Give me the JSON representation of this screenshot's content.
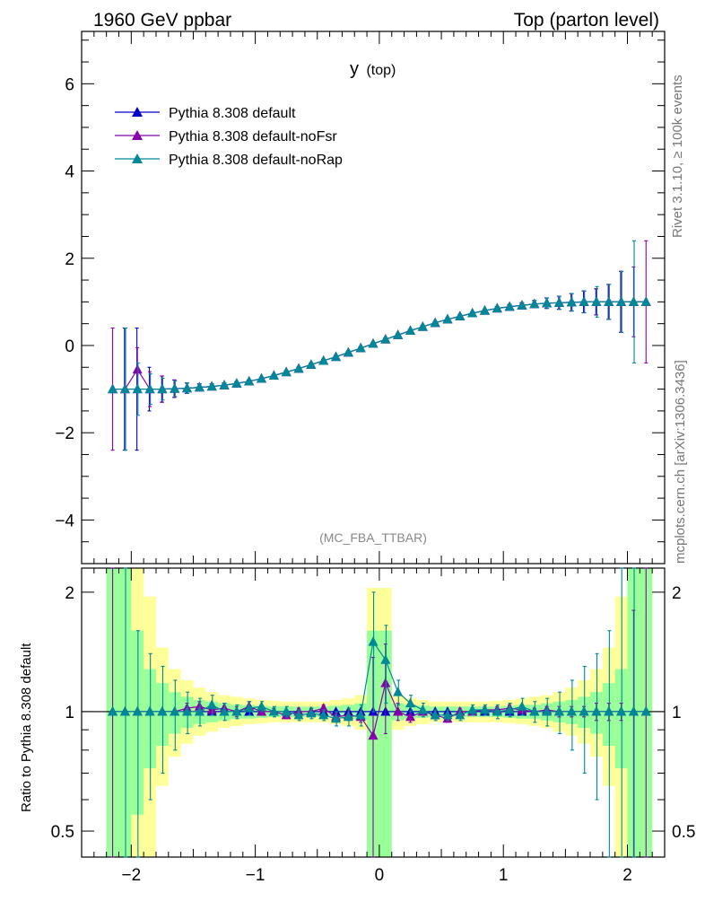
{
  "header": {
    "left": "1960 GeV ppbar",
    "right": "Top (parton level)"
  },
  "side_labels": {
    "rivet": "Rivet 3.1.10, ≥ 100k events",
    "mcplots": "mcplots.cern.ch [arXiv:1306.3436]"
  },
  "chart_data": [
    {
      "type": "line",
      "title": "y",
      "title_sub": "(top)",
      "annotation": "(MC_FBA_TTBAR)",
      "xlim": [
        -2.4,
        2.3
      ],
      "ylim": [
        -5.0,
        7.2
      ],
      "x_ticks": [
        -2,
        -1,
        0,
        1,
        2
      ],
      "x_tick_labels": [
        "−2",
        "−1",
        "0",
        "1",
        "2"
      ],
      "y_ticks": [
        -4,
        -2,
        0,
        2,
        4,
        6
      ],
      "y_tick_labels": [
        "−4",
        "−2",
        "0",
        "2",
        "4",
        "6"
      ],
      "legend_position": "top-left",
      "x": [
        -2.15,
        -2.05,
        -1.95,
        -1.85,
        -1.75,
        -1.65,
        -1.55,
        -1.45,
        -1.35,
        -1.25,
        -1.15,
        -1.05,
        -0.95,
        -0.85,
        -0.75,
        -0.65,
        -0.55,
        -0.45,
        -0.35,
        -0.25,
        -0.15,
        -0.05,
        0.05,
        0.15,
        0.25,
        0.35,
        0.45,
        0.55,
        0.65,
        0.75,
        0.85,
        0.95,
        1.05,
        1.15,
        1.25,
        1.35,
        1.45,
        1.55,
        1.65,
        1.75,
        1.85,
        1.95,
        2.05,
        2.15
      ],
      "series": [
        {
          "name": "Pythia 8.308 default",
          "color": "#0000cc",
          "values": [
            -1.0,
            -1.0,
            -1.0,
            -1.0,
            -1.0,
            -0.99,
            -0.98,
            -0.96,
            -0.94,
            -0.91,
            -0.87,
            -0.82,
            -0.76,
            -0.69,
            -0.61,
            -0.53,
            -0.44,
            -0.35,
            -0.26,
            -0.16,
            -0.06,
            0.04,
            0.14,
            0.24,
            0.34,
            0.43,
            0.52,
            0.6,
            0.67,
            0.74,
            0.8,
            0.85,
            0.89,
            0.92,
            0.95,
            0.97,
            0.98,
            0.99,
            1.0,
            1.0,
            1.0,
            1.0,
            1.0,
            1.0
          ],
          "errors": [
            0.0,
            1.4,
            1.4,
            0.5,
            0.3,
            0.2,
            0.12,
            0.08,
            0.06,
            0.05,
            0.04,
            0.03,
            0.03,
            0.03,
            0.03,
            0.03,
            0.03,
            0.03,
            0.03,
            0.03,
            0.03,
            0.03,
            0.03,
            0.03,
            0.03,
            0.03,
            0.03,
            0.03,
            0.03,
            0.03,
            0.03,
            0.04,
            0.05,
            0.06,
            0.08,
            0.12,
            0.15,
            0.2,
            0.25,
            0.3,
            0.4,
            0.7,
            0.0,
            0.0
          ]
        },
        {
          "name": "Pythia 8.308 default-noFsr",
          "color": "#8800aa",
          "values": [
            -1.0,
            -1.0,
            -0.55,
            -1.0,
            -1.0,
            -0.99,
            -0.98,
            -0.96,
            -0.94,
            -0.91,
            -0.87,
            -0.82,
            -0.76,
            -0.69,
            -0.61,
            -0.53,
            -0.44,
            -0.35,
            -0.26,
            -0.16,
            -0.06,
            0.04,
            0.14,
            0.24,
            0.34,
            0.43,
            0.52,
            0.6,
            0.67,
            0.74,
            0.8,
            0.85,
            0.89,
            0.92,
            0.95,
            0.97,
            0.98,
            0.99,
            1.0,
            1.0,
            1.0,
            1.0,
            1.0,
            1.0
          ],
          "errors": [
            1.4,
            0.0,
            0.5,
            0.4,
            0.3,
            0.2,
            0.12,
            0.08,
            0.06,
            0.05,
            0.04,
            0.03,
            0.03,
            0.03,
            0.03,
            0.03,
            0.03,
            0.03,
            0.03,
            0.03,
            0.03,
            0.03,
            0.03,
            0.03,
            0.03,
            0.03,
            0.03,
            0.03,
            0.03,
            0.03,
            0.03,
            0.04,
            0.05,
            0.06,
            0.08,
            0.12,
            0.15,
            0.2,
            0.25,
            0.3,
            0.4,
            0.7,
            0.8,
            1.4
          ]
        },
        {
          "name": "Pythia 8.308 default-noRap",
          "color": "#008899",
          "values": [
            -1.0,
            -1.0,
            -1.0,
            -1.0,
            -1.0,
            -0.99,
            -0.98,
            -0.96,
            -0.94,
            -0.91,
            -0.87,
            -0.82,
            -0.76,
            -0.69,
            -0.61,
            -0.53,
            -0.44,
            -0.35,
            -0.26,
            -0.16,
            -0.06,
            0.04,
            0.14,
            0.24,
            0.34,
            0.43,
            0.52,
            0.6,
            0.67,
            0.74,
            0.8,
            0.85,
            0.89,
            0.92,
            0.95,
            0.97,
            0.98,
            0.99,
            1.0,
            1.0,
            1.0,
            1.0,
            1.0,
            1.0
          ],
          "errors": [
            0.0,
            1.4,
            0.6,
            0.35,
            0.25,
            0.18,
            0.12,
            0.08,
            0.06,
            0.05,
            0.04,
            0.03,
            0.03,
            0.03,
            0.03,
            0.03,
            0.03,
            0.03,
            0.03,
            0.03,
            0.03,
            0.03,
            0.03,
            0.03,
            0.03,
            0.03,
            0.03,
            0.03,
            0.03,
            0.03,
            0.03,
            0.04,
            0.05,
            0.06,
            0.08,
            0.12,
            0.15,
            0.2,
            0.25,
            0.35,
            0.4,
            0.7,
            1.4,
            0.0
          ]
        }
      ]
    },
    {
      "type": "line",
      "ylabel": "Ratio to Pythia 8.308 default",
      "ylog": true,
      "xlim": [
        -2.4,
        2.3
      ],
      "ylim": [
        0.43,
        2.3
      ],
      "reference": 1.0,
      "y_ticks": [
        0.5,
        1,
        2
      ],
      "y_tick_labels": [
        "0.5",
        "1",
        "2"
      ],
      "band_inner_color": "#99ff99",
      "band_outer_color": "#ffff99",
      "bands": {
        "x_edges": [
          -2.2,
          -2.1,
          -2.0,
          -1.9,
          -1.8,
          -1.7,
          -1.6,
          -1.5,
          -1.4,
          -1.3,
          -1.2,
          -1.1,
          -1.0,
          -0.9,
          -0.8,
          -0.7,
          -0.6,
          -0.5,
          -0.4,
          -0.3,
          -0.2,
          -0.1,
          0.0,
          0.1,
          0.2,
          0.3,
          0.4,
          0.5,
          0.6,
          0.7,
          0.8,
          0.9,
          1.0,
          1.1,
          1.2,
          1.3,
          1.4,
          1.5,
          1.6,
          1.7,
          1.8,
          1.9,
          2.0,
          2.1,
          2.2
        ],
        "inner_lo": [
          0.4,
          0.4,
          0.55,
          0.72,
          0.82,
          0.88,
          0.91,
          0.93,
          0.94,
          0.95,
          0.96,
          0.96,
          0.965,
          0.97,
          0.97,
          0.97,
          0.97,
          0.97,
          0.965,
          0.96,
          0.95,
          0.4,
          0.4,
          0.95,
          0.96,
          0.965,
          0.97,
          0.97,
          0.97,
          0.97,
          0.97,
          0.97,
          0.965,
          0.96,
          0.96,
          0.95,
          0.94,
          0.93,
          0.91,
          0.88,
          0.82,
          0.72,
          0.4,
          0.4
        ],
        "inner_hi": [
          2.3,
          2.3,
          1.6,
          1.28,
          1.18,
          1.12,
          1.09,
          1.07,
          1.06,
          1.05,
          1.04,
          1.04,
          1.035,
          1.03,
          1.03,
          1.03,
          1.03,
          1.03,
          1.035,
          1.04,
          1.05,
          1.6,
          1.6,
          1.05,
          1.04,
          1.035,
          1.03,
          1.03,
          1.03,
          1.03,
          1.03,
          1.03,
          1.035,
          1.04,
          1.04,
          1.05,
          1.06,
          1.07,
          1.09,
          1.12,
          1.18,
          1.28,
          2.3,
          2.3
        ],
        "outer_lo": [
          0.4,
          0.4,
          0.4,
          0.4,
          0.65,
          0.77,
          0.83,
          0.87,
          0.89,
          0.91,
          0.92,
          0.93,
          0.935,
          0.94,
          0.94,
          0.94,
          0.94,
          0.94,
          0.93,
          0.92,
          0.9,
          0.4,
          0.4,
          0.9,
          0.92,
          0.93,
          0.94,
          0.94,
          0.94,
          0.94,
          0.94,
          0.94,
          0.935,
          0.93,
          0.92,
          0.91,
          0.89,
          0.87,
          0.83,
          0.77,
          0.65,
          0.4,
          0.4,
          0.4
        ],
        "outer_hi": [
          2.3,
          2.3,
          2.3,
          1.95,
          1.45,
          1.28,
          1.2,
          1.15,
          1.12,
          1.1,
          1.09,
          1.08,
          1.07,
          1.065,
          1.06,
          1.06,
          1.06,
          1.06,
          1.07,
          1.08,
          1.1,
          2.05,
          2.05,
          1.1,
          1.08,
          1.07,
          1.06,
          1.06,
          1.06,
          1.06,
          1.06,
          1.065,
          1.07,
          1.08,
          1.09,
          1.1,
          1.12,
          1.15,
          1.2,
          1.28,
          1.45,
          1.95,
          2.3,
          2.3
        ]
      },
      "series": [
        {
          "name": "Pythia 8.308 default",
          "color": "#0000cc",
          "values": [
            1.0,
            1.0,
            1.0,
            1.0,
            1.0,
            1.0,
            1.0,
            1.0,
            1.0,
            1.0,
            1.0,
            1.0,
            1.0,
            1.0,
            1.0,
            1.0,
            1.0,
            1.0,
            1.0,
            1.0,
            1.0,
            1.0,
            1.0,
            1.0,
            1.0,
            1.0,
            1.0,
            1.0,
            1.0,
            1.0,
            1.0,
            1.0,
            1.0,
            1.0,
            1.0,
            1.0,
            1.0,
            1.0,
            1.0,
            1.0,
            1.0,
            1.0,
            1.0,
            1.0
          ]
        },
        {
          "name": "Pythia 8.308 default-noFsr",
          "color": "#8800aa",
          "values": [
            1.0,
            1.0,
            1.0,
            1.0,
            1.0,
            1.0,
            1.02,
            1.03,
            1.01,
            1.02,
            1.0,
            1.03,
            1.0,
            1.0,
            0.98,
            1.0,
            1.0,
            1.02,
            0.97,
            0.98,
            0.97,
            0.87,
            1.18,
            1.0,
            0.97,
            1.0,
            0.98,
            0.96,
            1.0,
            1.0,
            1.01,
            1.01,
            1.02,
            1.01,
            1.0,
            1.01,
            1.0,
            1.0,
            1.0,
            1.0,
            1.0,
            1.0,
            1.0,
            1.0
          ],
          "errors": [
            1.4,
            0.0,
            0.0,
            0.0,
            0.0,
            0.0,
            0.03,
            0.03,
            0.03,
            0.03,
            0.03,
            0.03,
            0.02,
            0.02,
            0.02,
            0.02,
            0.02,
            0.02,
            0.02,
            0.03,
            0.03,
            0.5,
            0.3,
            0.05,
            0.03,
            0.02,
            0.02,
            0.02,
            0.02,
            0.02,
            0.02,
            0.02,
            0.02,
            0.02,
            0.02,
            0.02,
            0.03,
            0.03,
            0.03,
            0.05,
            0.05,
            0.05,
            0.8,
            1.4
          ]
        },
        {
          "name": "Pythia 8.308 default-noRap",
          "color": "#008899",
          "values": [
            1.0,
            1.0,
            1.0,
            1.0,
            1.0,
            1.0,
            1.0,
            1.0,
            1.04,
            1.0,
            1.0,
            1.02,
            1.03,
            1.0,
            1.0,
            0.98,
            0.99,
            0.98,
            0.96,
            0.97,
            0.98,
            1.5,
            1.35,
            1.12,
            1.05,
            1.01,
            0.98,
            0.98,
            0.98,
            1.01,
            1.01,
            1.0,
            1.01,
            1.03,
            1.0,
            1.0,
            1.0,
            1.0,
            1.0,
            1.0,
            1.0,
            1.0,
            1.0,
            1.0
          ],
          "errors": [
            0.0,
            1.4,
            0.6,
            0.4,
            0.3,
            0.2,
            0.12,
            0.08,
            0.06,
            0.05,
            0.04,
            0.04,
            0.03,
            0.03,
            0.03,
            0.03,
            0.03,
            0.03,
            0.04,
            0.05,
            0.06,
            0.5,
            0.3,
            0.08,
            0.05,
            0.04,
            0.03,
            0.03,
            0.03,
            0.03,
            0.03,
            0.04,
            0.04,
            0.05,
            0.06,
            0.08,
            0.12,
            0.2,
            0.3,
            0.4,
            0.6,
            1.4,
            1.4,
            0.0
          ]
        }
      ]
    }
  ]
}
